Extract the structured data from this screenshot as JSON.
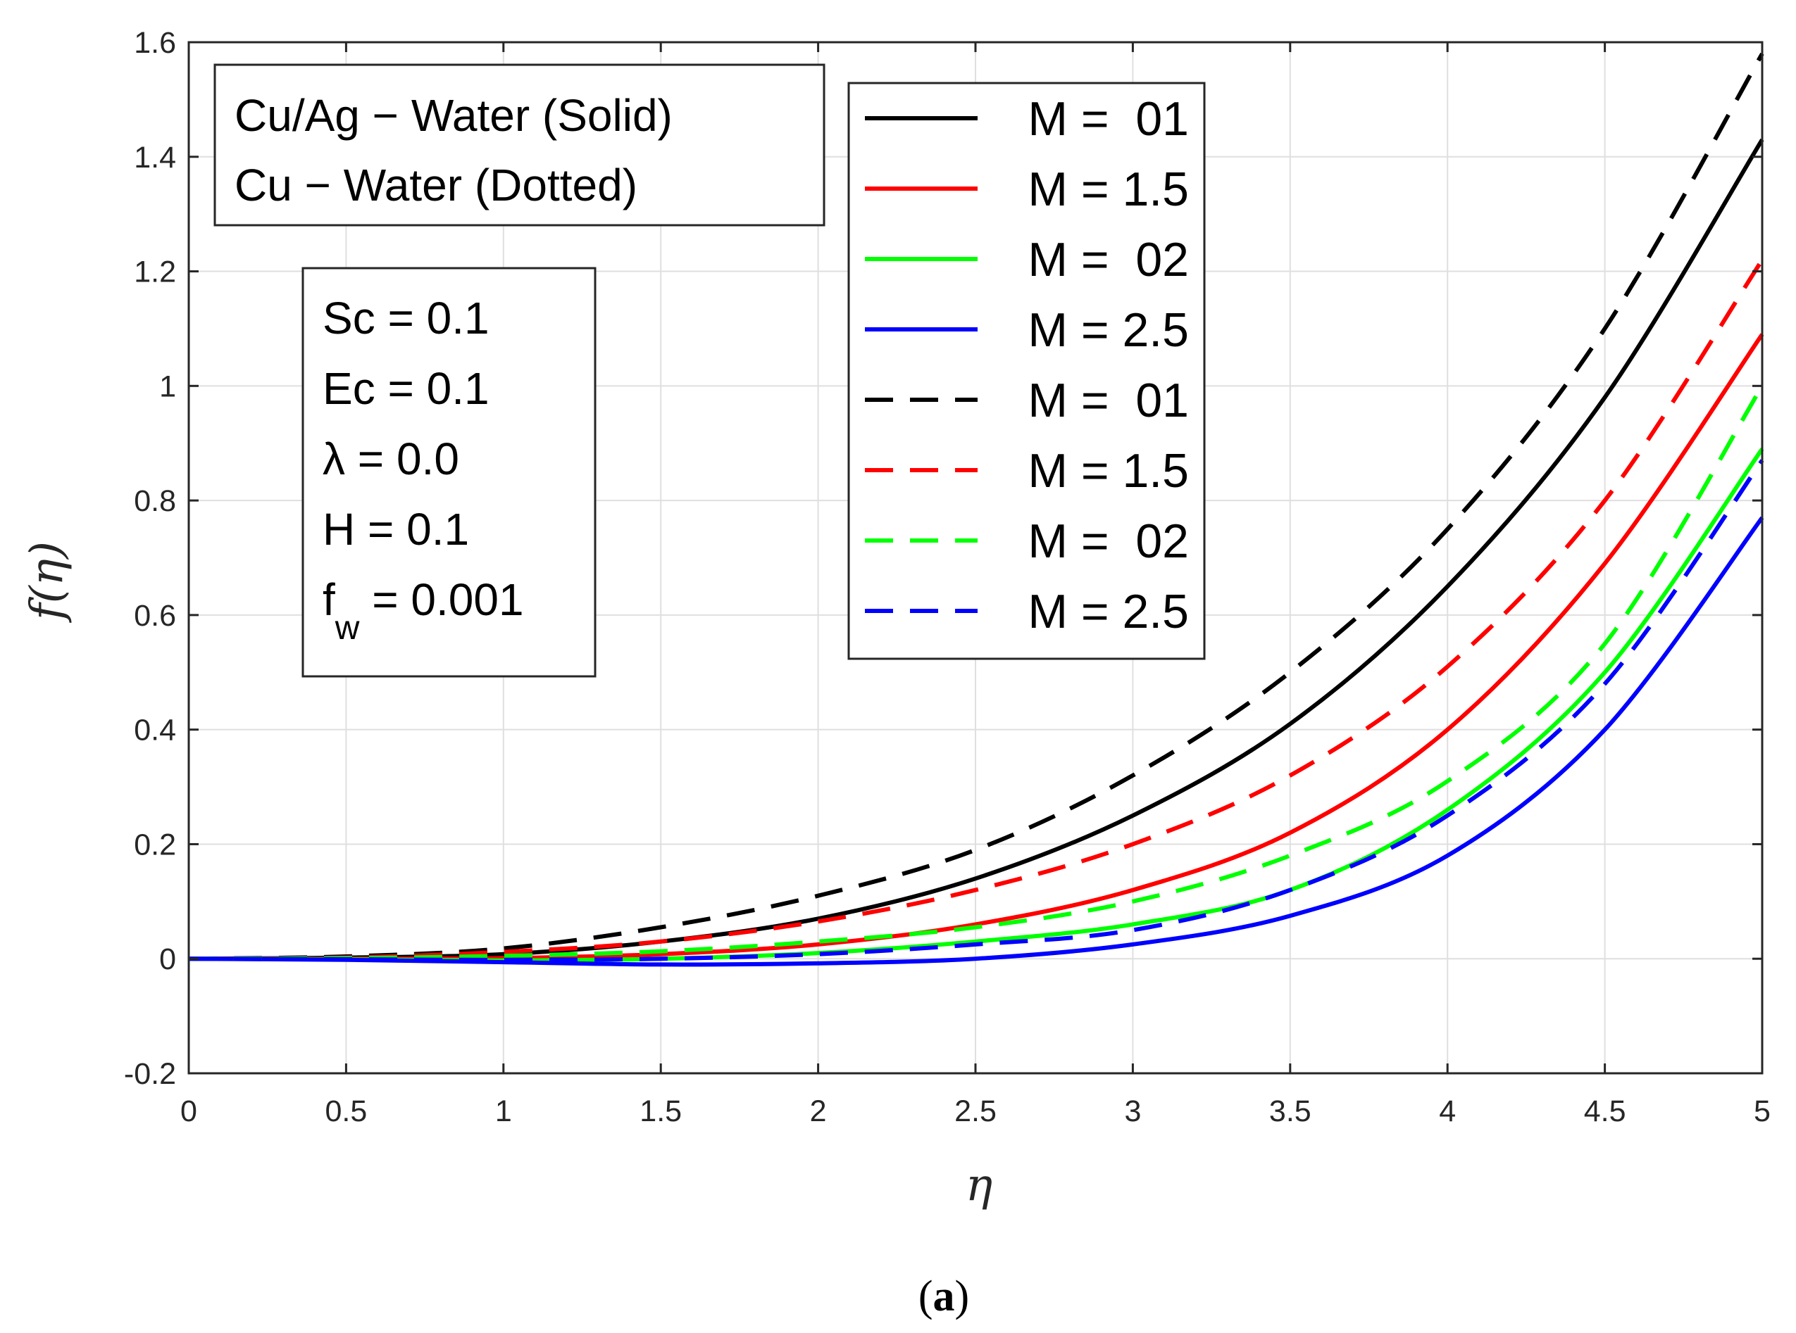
{
  "chart_data": {
    "type": "line",
    "title": "",
    "xlabel": "η",
    "ylabel": "f(η)",
    "xlim": [
      0,
      5
    ],
    "ylim": [
      -0.2,
      1.6
    ],
    "xticks": [
      "0",
      "0.5",
      "1",
      "1.5",
      "2",
      "2.5",
      "3",
      "3.5",
      "4",
      "4.5",
      "5"
    ],
    "yticks": [
      "-0.2",
      "0",
      "0.2",
      "0.4",
      "0.6",
      "0.8",
      "1",
      "1.2",
      "1.4",
      "1.6"
    ],
    "grid": true,
    "legend_position": "top-center",
    "x": [
      0,
      0.5,
      1,
      1.5,
      2,
      2.5,
      3,
      3.5,
      4,
      4.5,
      5
    ],
    "series": [
      {
        "name": "M =  01",
        "style": "solid",
        "color": "#000000",
        "values": [
          0,
          0.002,
          0.008,
          0.03,
          0.07,
          0.14,
          0.25,
          0.41,
          0.65,
          0.98,
          1.43
        ]
      },
      {
        "name": "M = 1.5",
        "style": "solid",
        "color": "#ff0000",
        "values": [
          0,
          0.0,
          0.001,
          0.008,
          0.025,
          0.06,
          0.12,
          0.22,
          0.4,
          0.69,
          1.09
        ]
      },
      {
        "name": "M =  02",
        "style": "solid",
        "color": "#00ff00",
        "values": [
          0,
          -0.001,
          -0.003,
          0.0,
          0.01,
          0.03,
          0.06,
          0.12,
          0.26,
          0.5,
          0.89
        ]
      },
      {
        "name": "M = 2.5",
        "style": "solid",
        "color": "#0000ff",
        "values": [
          0,
          -0.002,
          -0.006,
          -0.01,
          -0.008,
          0.0,
          0.025,
          0.075,
          0.18,
          0.4,
          0.77
        ]
      },
      {
        "name": "M =  01",
        "style": "dashed",
        "color": "#000000",
        "values": [
          0,
          0.004,
          0.018,
          0.055,
          0.11,
          0.19,
          0.32,
          0.5,
          0.75,
          1.1,
          1.58
        ]
      },
      {
        "name": "M = 1.5",
        "style": "dashed",
        "color": "#ff0000",
        "values": [
          0,
          0.002,
          0.012,
          0.03,
          0.065,
          0.12,
          0.2,
          0.32,
          0.51,
          0.8,
          1.22
        ]
      },
      {
        "name": "M =  02",
        "style": "dashed",
        "color": "#00ff00",
        "values": [
          0,
          0.001,
          0.005,
          0.013,
          0.03,
          0.055,
          0.1,
          0.18,
          0.31,
          0.55,
          1.0
        ]
      },
      {
        "name": "M = 2.5",
        "style": "dashed",
        "color": "#0000ff",
        "values": [
          0,
          -0.001,
          -0.002,
          0.0,
          0.008,
          0.025,
          0.05,
          0.12,
          0.25,
          0.48,
          0.87
        ]
      }
    ],
    "annotations": {
      "type_box": [
        "Cu/Ag − Water (Solid)",
        "Cu − Water (Dotted)"
      ],
      "params": [
        {
          "label": "Sc = 0.1"
        },
        {
          "label": "Ec = 0.1"
        },
        {
          "label": "λ = 0.0"
        },
        {
          "label": "H = 0.1"
        },
        {
          "prefix": "f",
          "sub": "w",
          "suffix": " = 0.001"
        }
      ]
    },
    "caption": {
      "open": "(",
      "letter": "a",
      "close": ")"
    }
  }
}
